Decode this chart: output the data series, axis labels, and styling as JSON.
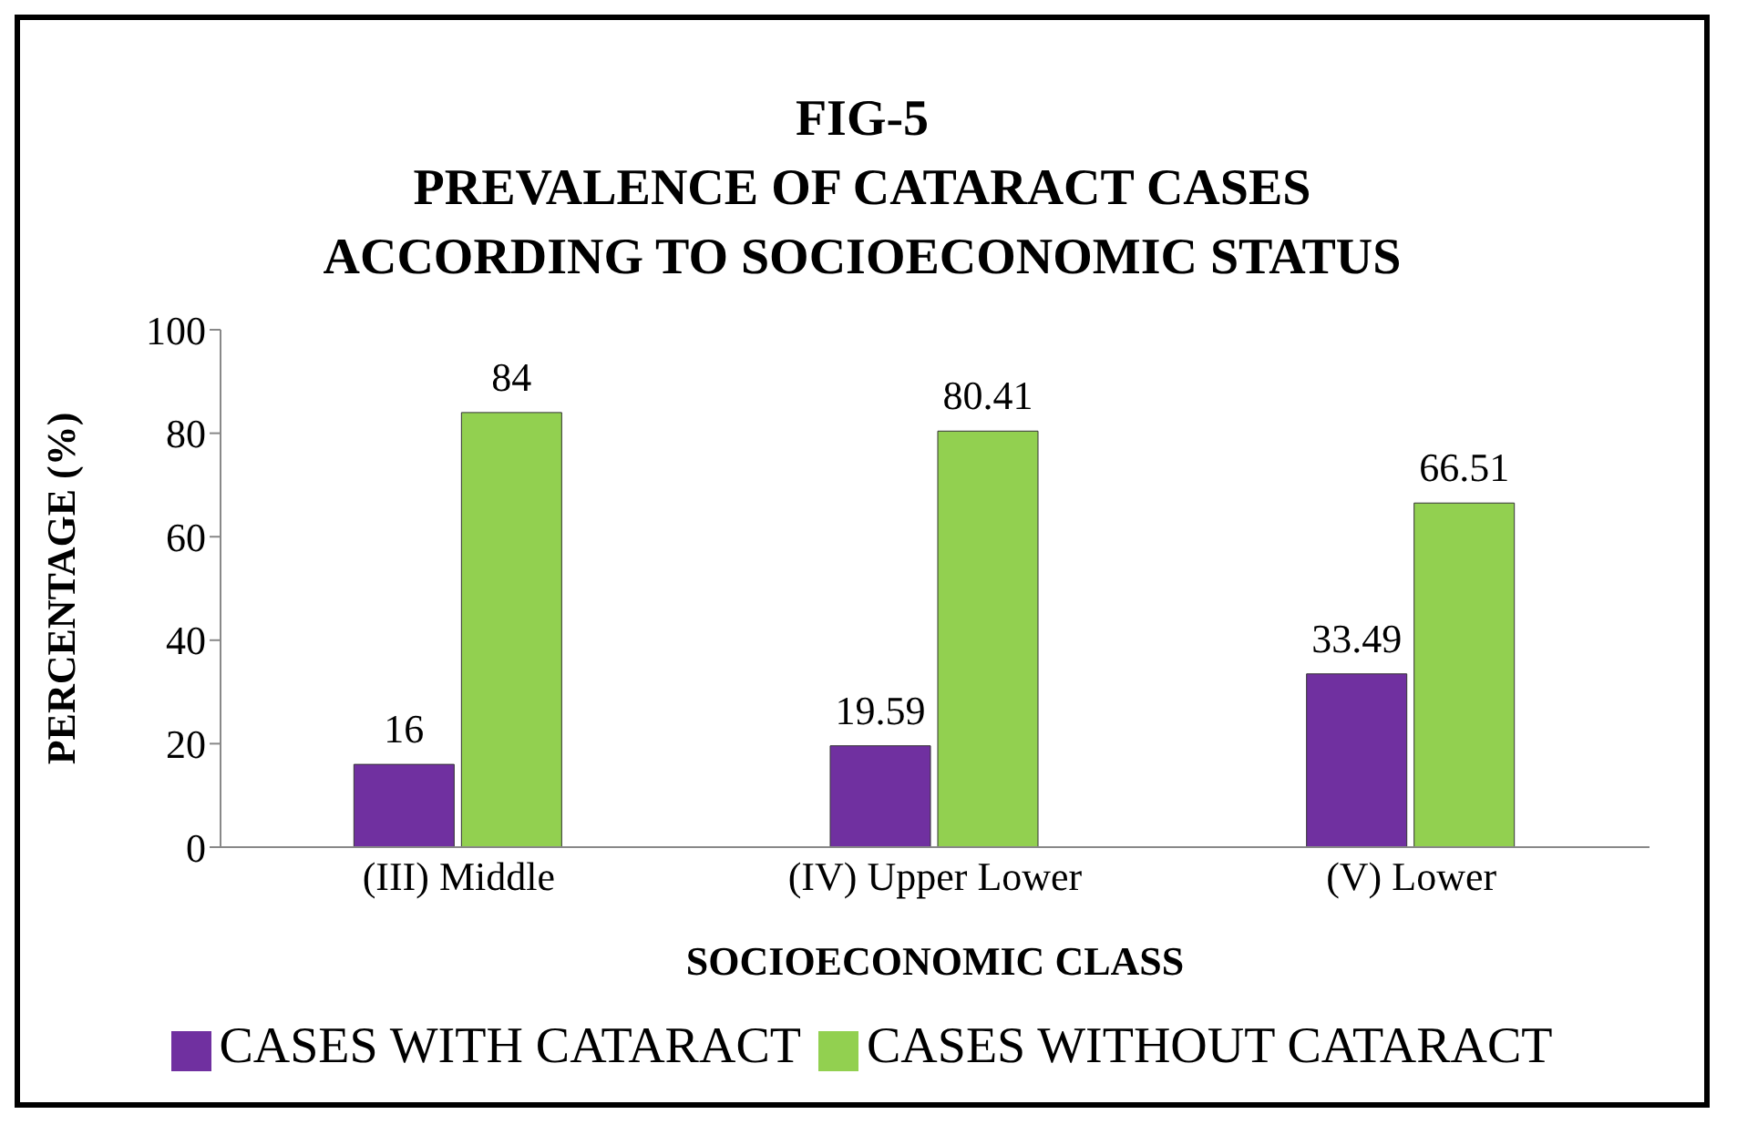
{
  "chart_data": {
    "type": "bar",
    "title": "FIG-5\nPREVALENCE OF CATARACT CASES\nACCORDING TO SOCIOECONOMIC STATUS",
    "xlabel": "SOCIOECONOMIC CLASS",
    "ylabel": "PERCENTAGE (%)",
    "categories": [
      "(III) Middle",
      "(IV) Upper Lower",
      "(V) Lower"
    ],
    "series": [
      {
        "name": "CASES WITH CATARACT",
        "color": "#7030a0",
        "values": [
          16,
          19.59,
          33.49
        ]
      },
      {
        "name": "CASES WITHOUT CATARACT",
        "color": "#92d050",
        "values": [
          84,
          80.41,
          66.51
        ]
      }
    ],
    "ylim": [
      0,
      100
    ],
    "yticks": [
      0,
      20,
      40,
      60,
      80,
      100
    ],
    "grid": false,
    "legend": "bottom",
    "data_labels": true
  }
}
